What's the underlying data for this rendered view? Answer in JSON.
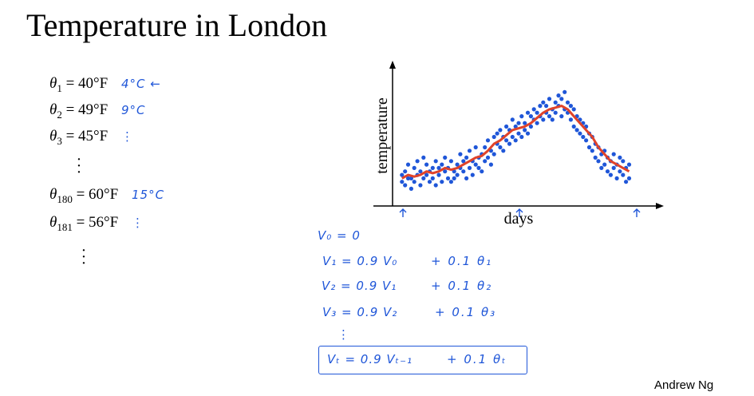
{
  "title": "Temperature in London",
  "equations": [
    {
      "var": "θ",
      "sub": "1",
      "value": "= 40°F",
      "note": "4°C ←"
    },
    {
      "var": "θ",
      "sub": "2",
      "value": "= 49°F",
      "note": "9°C"
    },
    {
      "var": "θ",
      "sub": "3",
      "value": "= 45°F",
      "note": "⋮"
    },
    {
      "var": "θ",
      "sub": "180",
      "value": "= 60°F",
      "note": "15°C"
    },
    {
      "var": "θ",
      "sub": "181",
      "value": "= 56°F",
      "note": "⋮"
    }
  ],
  "handwritten": [
    {
      "lhs": "V₀ = 0",
      "rhs": ""
    },
    {
      "lhs": "V₁ = 0.9 V₀",
      "rhs": "+ 0.1 θ₁"
    },
    {
      "lhs": "V₂ = 0.9 V₁",
      "rhs": "+ 0.1 θ₂"
    },
    {
      "lhs": "V₃ = 0.9 V₂",
      "rhs": "+ 0.1 θ₃"
    },
    {
      "lhs": "⋮",
      "rhs": ""
    },
    {
      "lhs": "Vₜ = 0.9 Vₜ₋₁",
      "rhs": "+ 0.1 θₜ"
    }
  ],
  "footer": "Andrew Ng",
  "colors": {
    "points": "#1f56d8",
    "line": "#e0432a",
    "ink": "#1f56d8"
  },
  "chart_data": {
    "type": "scatter",
    "xlabel": "days",
    "ylabel": "temperature",
    "grid": false,
    "x_markers": "↑ at start, middle and end of the days axis",
    "series": [
      {
        "values": [
          [
            1,
            2
          ],
          [
            1,
            4
          ],
          [
            2,
            5
          ],
          [
            2,
            1
          ],
          [
            3,
            3
          ],
          [
            3,
            7
          ],
          [
            4,
            0
          ],
          [
            4,
            3
          ],
          [
            5,
            2
          ],
          [
            5,
            6
          ],
          [
            6,
            4
          ],
          [
            6,
            8
          ],
          [
            7,
            1
          ],
          [
            7,
            5
          ],
          [
            8,
            3
          ],
          [
            8,
            9
          ],
          [
            9,
            4
          ],
          [
            9,
            7
          ],
          [
            10,
            2
          ],
          [
            10,
            5
          ],
          [
            11,
            6
          ],
          [
            11,
            3
          ],
          [
            12,
            8
          ],
          [
            12,
            1
          ],
          [
            13,
            4
          ],
          [
            13,
            6
          ],
          [
            14,
            2
          ],
          [
            14,
            7
          ],
          [
            15,
            5
          ],
          [
            15,
            9
          ],
          [
            16,
            3
          ],
          [
            16,
            6
          ],
          [
            17,
            2
          ],
          [
            17,
            8
          ],
          [
            18,
            5
          ],
          [
            18,
            3
          ],
          [
            19,
            7
          ],
          [
            19,
            4
          ],
          [
            20,
            6
          ],
          [
            20,
            10
          ],
          [
            21,
            5
          ],
          [
            21,
            8
          ],
          [
            22,
            3
          ],
          [
            22,
            9
          ],
          [
            23,
            6
          ],
          [
            23,
            11
          ],
          [
            24,
            4
          ],
          [
            24,
            8
          ],
          [
            25,
            7
          ],
          [
            25,
            12
          ],
          [
            26,
            6
          ],
          [
            26,
            9
          ],
          [
            27,
            5
          ],
          [
            27,
            10
          ],
          [
            28,
            8
          ],
          [
            28,
            12
          ],
          [
            29,
            9
          ],
          [
            29,
            14
          ],
          [
            30,
            7
          ],
          [
            30,
            11
          ],
          [
            31,
            10
          ],
          [
            31,
            15
          ],
          [
            32,
            13
          ],
          [
            32,
            16
          ],
          [
            33,
            12
          ],
          [
            33,
            17
          ],
          [
            34,
            11
          ],
          [
            34,
            15
          ],
          [
            35,
            14
          ],
          [
            35,
            18
          ],
          [
            36,
            13
          ],
          [
            36,
            17
          ],
          [
            37,
            15
          ],
          [
            37,
            20
          ],
          [
            38,
            14
          ],
          [
            38,
            18
          ],
          [
            39,
            16
          ],
          [
            39,
            19
          ],
          [
            40,
            15
          ],
          [
            40,
            21
          ],
          [
            41,
            17
          ],
          [
            41,
            19
          ],
          [
            42,
            16
          ],
          [
            42,
            22
          ],
          [
            43,
            18
          ],
          [
            43,
            21
          ],
          [
            44,
            20
          ],
          [
            44,
            23
          ],
          [
            45,
            19
          ],
          [
            45,
            22
          ],
          [
            46,
            21
          ],
          [
            46,
            24
          ],
          [
            47,
            20
          ],
          [
            47,
            25
          ],
          [
            48,
            22
          ],
          [
            48,
            24
          ],
          [
            49,
            21
          ],
          [
            49,
            26
          ],
          [
            50,
            23
          ],
          [
            50,
            20
          ],
          [
            51,
            22
          ],
          [
            51,
            25
          ],
          [
            52,
            24
          ],
          [
            52,
            27
          ],
          [
            53,
            21
          ],
          [
            53,
            26
          ],
          [
            54,
            23
          ],
          [
            54,
            28
          ],
          [
            55,
            22
          ],
          [
            55,
            25
          ],
          [
            56,
            20
          ],
          [
            56,
            24
          ],
          [
            57,
            18
          ],
          [
            57,
            23
          ],
          [
            58,
            17
          ],
          [
            58,
            21
          ],
          [
            59,
            16
          ],
          [
            59,
            20
          ],
          [
            60,
            15
          ],
          [
            60,
            19
          ],
          [
            61,
            14
          ],
          [
            61,
            18
          ],
          [
            62,
            12
          ],
          [
            62,
            16
          ],
          [
            63,
            11
          ],
          [
            63,
            15
          ],
          [
            64,
            9
          ],
          [
            64,
            13
          ],
          [
            65,
            8
          ],
          [
            65,
            12
          ],
          [
            66,
            6
          ],
          [
            66,
            10
          ],
          [
            67,
            7
          ],
          [
            67,
            11
          ],
          [
            68,
            5
          ],
          [
            68,
            9
          ],
          [
            69,
            4
          ],
          [
            69,
            8
          ],
          [
            70,
            6
          ],
          [
            70,
            10
          ],
          [
            71,
            3
          ],
          [
            71,
            7
          ],
          [
            72,
            5
          ],
          [
            72,
            9
          ],
          [
            73,
            4
          ],
          [
            73,
            8
          ],
          [
            74,
            2
          ],
          [
            74,
            6
          ],
          [
            75,
            3
          ],
          [
            75,
            7
          ]
        ]
      },
      {
        "values": [
          [
            1,
            3
          ],
          [
            3,
            4
          ],
          [
            5,
            3.5
          ],
          [
            7,
            4
          ],
          [
            9,
            5
          ],
          [
            11,
            4.5
          ],
          [
            13,
            5
          ],
          [
            15,
            6
          ],
          [
            17,
            5.5
          ],
          [
            19,
            6
          ],
          [
            21,
            7
          ],
          [
            23,
            8
          ],
          [
            25,
            9
          ],
          [
            27,
            9.5
          ],
          [
            29,
            11
          ],
          [
            31,
            13
          ],
          [
            33,
            14
          ],
          [
            35,
            15.5
          ],
          [
            37,
            17
          ],
          [
            39,
            17.5
          ],
          [
            41,
            18
          ],
          [
            43,
            19
          ],
          [
            45,
            20.5
          ],
          [
            47,
            22
          ],
          [
            49,
            23
          ],
          [
            51,
            23.5
          ],
          [
            53,
            24
          ],
          [
            55,
            23
          ],
          [
            57,
            21
          ],
          [
            59,
            19
          ],
          [
            61,
            17
          ],
          [
            63,
            15
          ],
          [
            65,
            12
          ],
          [
            67,
            10
          ],
          [
            69,
            8
          ],
          [
            71,
            7
          ],
          [
            73,
            6
          ],
          [
            75,
            5
          ]
        ]
      }
    ],
    "xlim": [
      0,
      78
    ],
    "ylim": [
      -2,
      32
    ]
  }
}
